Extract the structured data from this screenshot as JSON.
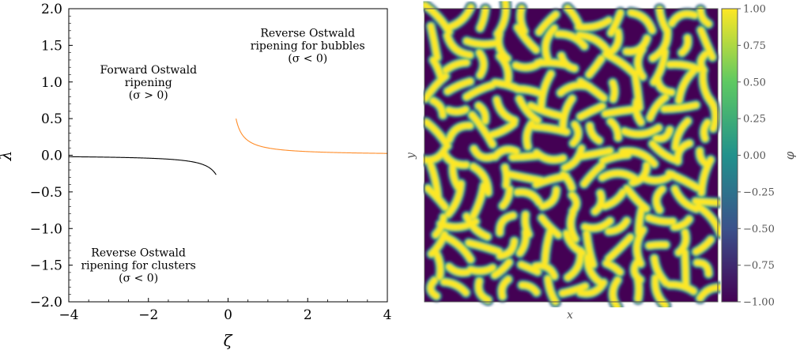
{
  "chart_data": [
    {
      "type": "line",
      "xlabel": "ζ",
      "ylabel": "λ",
      "xlim": [
        -4,
        4
      ],
      "ylim": [
        -2,
        2
      ],
      "xticks": [
        -4,
        -2,
        0,
        2,
        4
      ],
      "yticks": [
        -2.0,
        -1.5,
        -1.0,
        -0.5,
        0.0,
        0.5,
        1.0,
        1.5,
        2.0
      ],
      "xtick_labels": [
        "−4",
        "−2",
        "0",
        "2",
        "4"
      ],
      "ytick_labels": [
        "−2.0",
        "−1.5",
        "−1.0",
        "−0.5",
        "0.0",
        "0.5",
        "1.0",
        "1.5",
        "2.0"
      ],
      "series": [
        {
          "color": "#000000",
          "relation": "λ = 0.08/ζ",
          "x_range": [
            -4,
            -0.3
          ]
        },
        {
          "color": "#ff8c28",
          "relation": "λ = 0.1/ζ",
          "x_range": [
            0.2,
            4
          ]
        }
      ],
      "annotations": [
        {
          "lines": [
            "Forward Ostwald",
            "ripening",
            "(σ > 0)"
          ],
          "x": -2.0,
          "y": 1.0
        },
        {
          "lines": [
            "Reverse Ostwald",
            "ripening for bubbles",
            "(σ < 0)"
          ],
          "x": 2.0,
          "y": 1.5
        },
        {
          "lines": [
            "Reverse Ostwald",
            "ripening for clusters",
            "(σ < 0)"
          ],
          "x": -2.25,
          "y": -1.5
        }
      ],
      "grid": false
    },
    {
      "type": "heatmap",
      "xlabel": "x",
      "ylabel": "y",
      "colorbar_label": "φ",
      "zlim": [
        -1.0,
        1.0
      ],
      "colormap": "viridis",
      "cmap_colors": [
        "#440154",
        "#3b528b",
        "#21918c",
        "#5ec962",
        "#fde725"
      ],
      "colorbar_ticks": [
        -1.0,
        -0.75,
        -0.5,
        -0.25,
        0.0,
        0.25,
        0.5,
        0.75,
        1.0
      ],
      "colorbar_tick_labels": [
        "−1.00",
        "−0.75",
        "−0.50",
        "−0.25",
        "0.00",
        "0.25",
        "0.50",
        "0.75",
        "1.00"
      ]
    }
  ]
}
